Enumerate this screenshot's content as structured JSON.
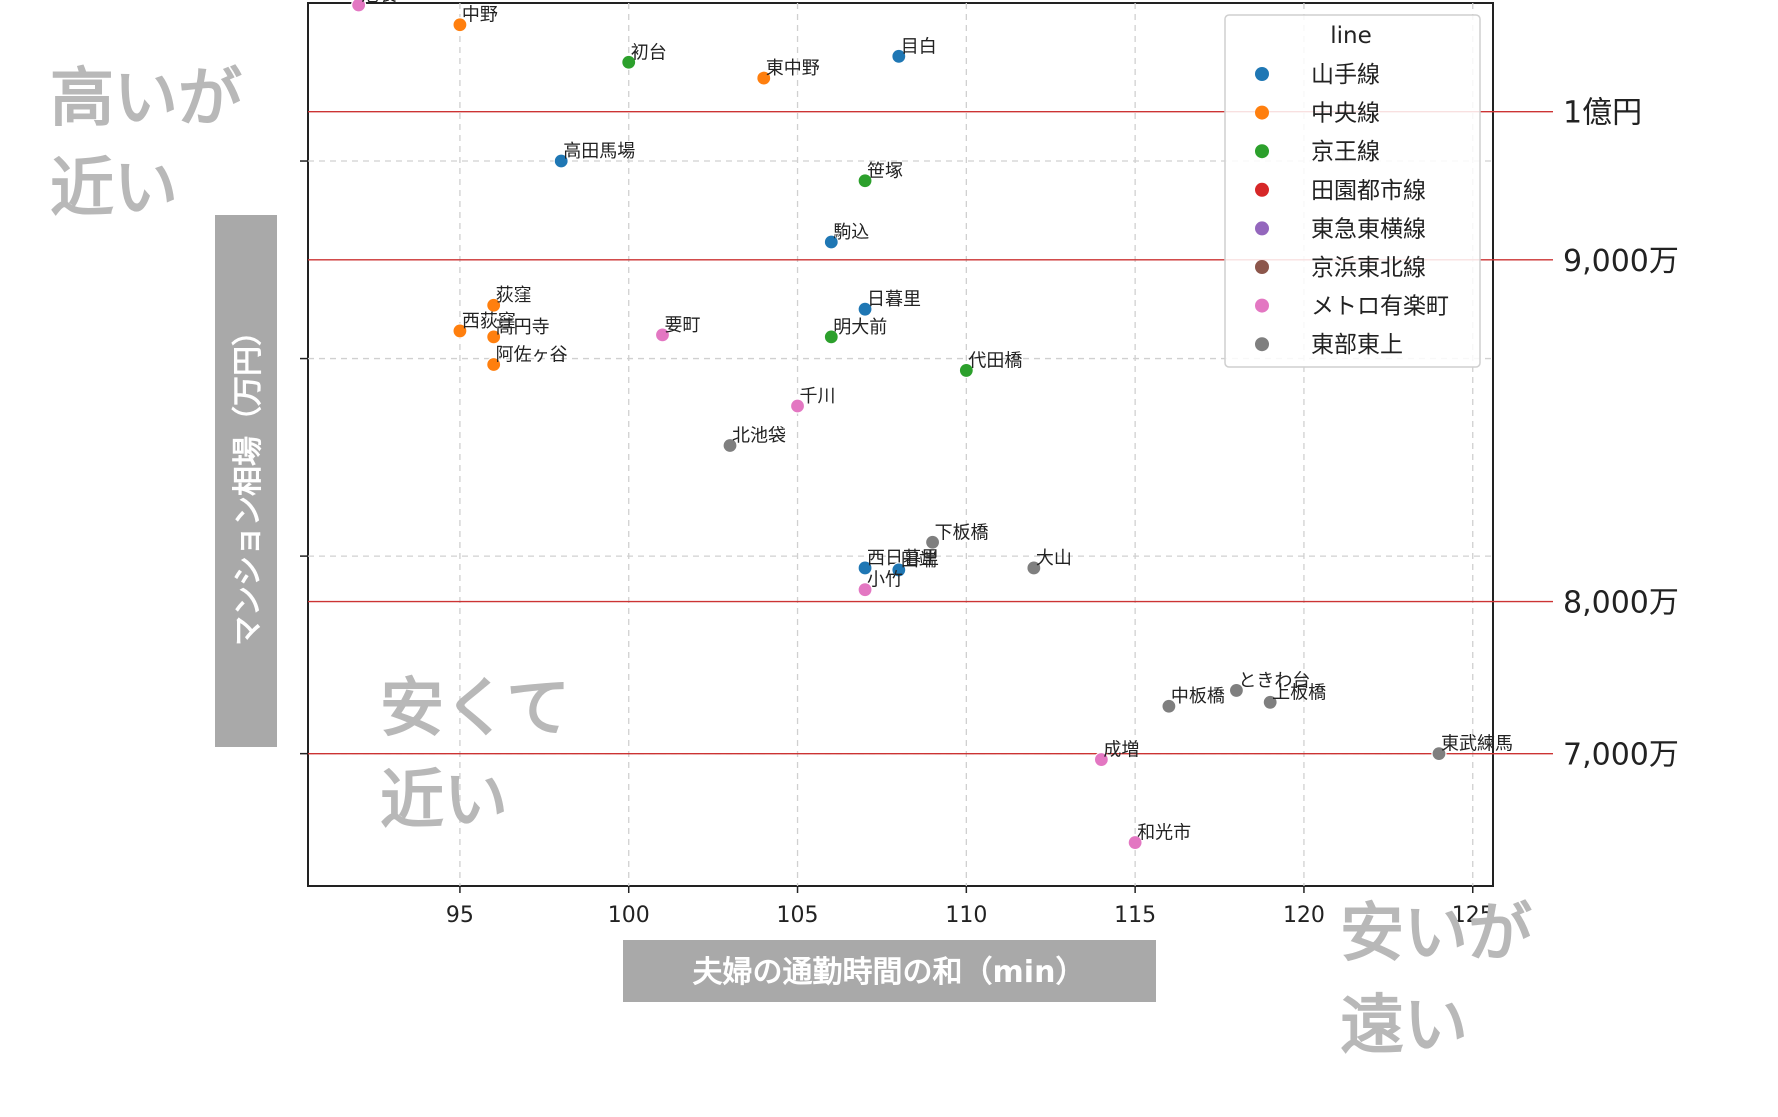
{
  "chart_data": {
    "type": "scatter",
    "xlabel": "夫婦の通勤時間の和（min）",
    "ylabel": "マンション相場（万円）",
    "xlim": [
      90.5,
      125.6
    ],
    "ylim": [
      6330,
      10800
    ],
    "xticks": [
      "95",
      "100",
      "105",
      "110",
      "115",
      "120",
      "125"
    ],
    "xtick_values": [
      95,
      100,
      105,
      110,
      115,
      120,
      125
    ],
    "ytick_values": [
      7000,
      8000,
      9000,
      10000
    ],
    "grid": true,
    "legend": {
      "title": "line",
      "placement": "top-right",
      "entries": [
        {
          "name": "山手線",
          "color": "#1f77b4"
        },
        {
          "name": "中央線",
          "color": "#ff7f0e"
        },
        {
          "name": "京王線",
          "color": "#2ca02c"
        },
        {
          "name": "田園都市線",
          "color": "#d62728"
        },
        {
          "name": "東急東横線",
          "color": "#9467bd"
        },
        {
          "name": "京浜東北線",
          "color": "#8c564b"
        },
        {
          "name": "メトロ有楽町",
          "color": "#e377c2"
        },
        {
          "name": "東部東上",
          "color": "#7f7f7f"
        }
      ]
    },
    "points": [
      {
        "label": "池袋",
        "x": 92,
        "y": 10790,
        "line": "メトロ有楽町"
      },
      {
        "label": "中野",
        "x": 95,
        "y": 10690,
        "line": "中央線"
      },
      {
        "label": "初台",
        "x": 100,
        "y": 10500,
        "line": "京王線"
      },
      {
        "label": "東中野",
        "x": 104,
        "y": 10420,
        "line": "中央線"
      },
      {
        "label": "目白",
        "x": 108,
        "y": 10530,
        "line": "山手線"
      },
      {
        "label": "高田馬場",
        "x": 98,
        "y": 10000,
        "line": "山手線"
      },
      {
        "label": "笹塚",
        "x": 107,
        "y": 9900,
        "line": "京王線"
      },
      {
        "label": "駒込",
        "x": 106,
        "y": 9590,
        "line": "山手線"
      },
      {
        "label": "荻窪",
        "x": 96,
        "y": 9270,
        "line": "中央線"
      },
      {
        "label": "西荻窪",
        "x": 95,
        "y": 9140,
        "line": "中央線"
      },
      {
        "label": "高円寺",
        "x": 96,
        "y": 9110,
        "line": "中央線"
      },
      {
        "label": "阿佐ヶ谷",
        "x": 96,
        "y": 8970,
        "line": "中央線"
      },
      {
        "label": "日暮里",
        "x": 107,
        "y": 9250,
        "line": "山手線"
      },
      {
        "label": "要町",
        "x": 101,
        "y": 9120,
        "line": "メトロ有楽町"
      },
      {
        "label": "明大前",
        "x": 106,
        "y": 9110,
        "line": "京王線"
      },
      {
        "label": "代田橋",
        "x": 110,
        "y": 8940,
        "line": "京王線"
      },
      {
        "label": "千川",
        "x": 105,
        "y": 8760,
        "line": "メトロ有楽町"
      },
      {
        "label": "北池袋",
        "x": 103,
        "y": 8560,
        "line": "東部東上"
      },
      {
        "label": "下板橋",
        "x": 109,
        "y": 8070,
        "line": "東部東上"
      },
      {
        "label": "西日暮里",
        "x": 107,
        "y": 7940,
        "line": "山手線"
      },
      {
        "label": "田端",
        "x": 108,
        "y": 7930,
        "line": "山手線"
      },
      {
        "label": "大山",
        "x": 112,
        "y": 7940,
        "line": "東部東上"
      },
      {
        "label": "小竹",
        "x": 107,
        "y": 7830,
        "line": "メトロ有楽町"
      },
      {
        "label": "ときわ台",
        "x": 118,
        "y": 7320,
        "line": "東部東上"
      },
      {
        "label": "中板橋",
        "x": 116,
        "y": 7240,
        "line": "東部東上"
      },
      {
        "label": "上板橋",
        "x": 119,
        "y": 7260,
        "line": "東部東上"
      },
      {
        "label": "成増",
        "x": 114,
        "y": 6970,
        "line": "メトロ有楽町"
      },
      {
        "label": "東武練馬",
        "x": 124,
        "y": 7000,
        "line": "東部東上"
      },
      {
        "label": "和光市",
        "x": 115,
        "y": 6550,
        "line": "メトロ有楽町"
      }
    ],
    "reference_lines": [
      {
        "label": "1億円",
        "y": 10250
      },
      {
        "label": "9,000万",
        "y": 9500
      },
      {
        "label": "8,000万",
        "y": 7770
      },
      {
        "label": "7,000万",
        "y": 7000
      }
    ],
    "annotations": {
      "top_left": [
        "高いが",
        "近い"
      ],
      "bottom_left": [
        "安くて",
        "近い"
      ],
      "bottom_right": [
        "安いが",
        "遠い"
      ]
    },
    "colors": {
      "reference_line": "#cc3333",
      "label_box": "#a9a9a9",
      "annotation": "#b8b8b8"
    }
  }
}
